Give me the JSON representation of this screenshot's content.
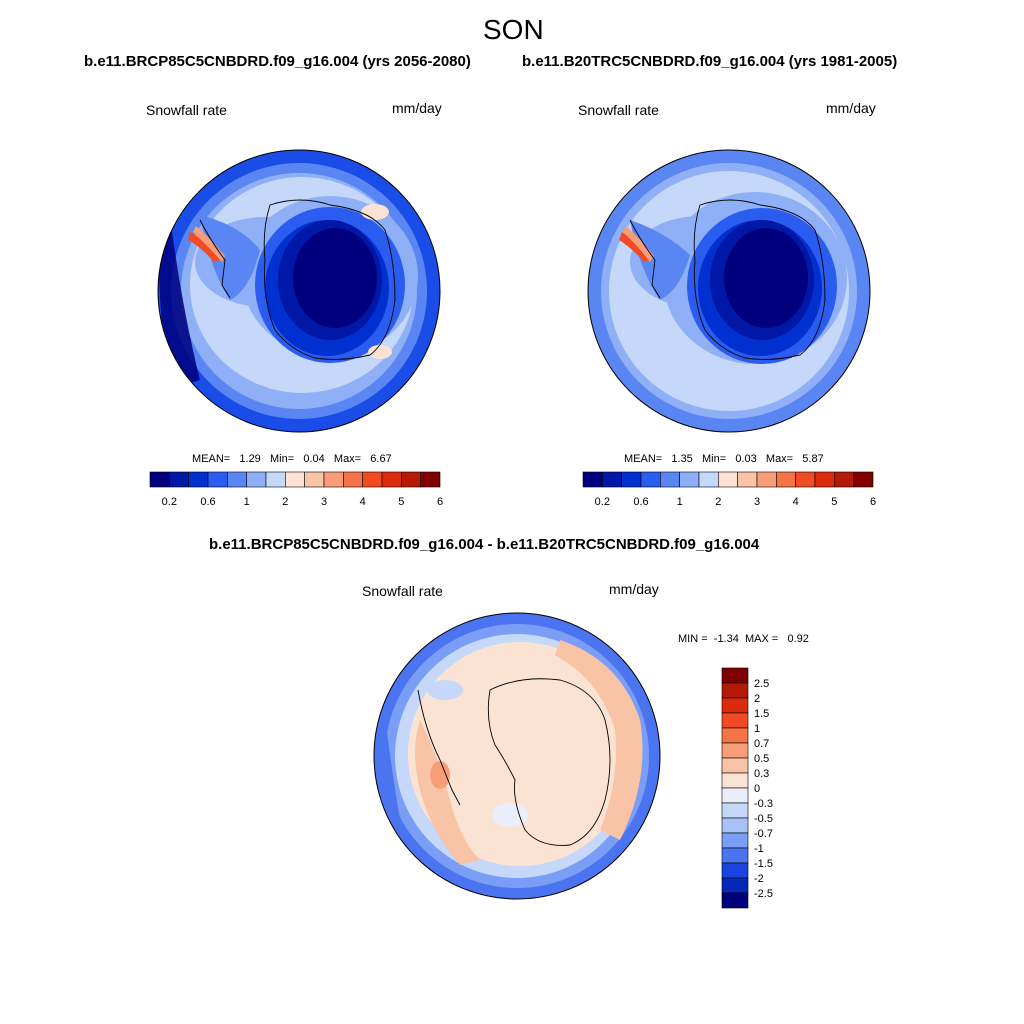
{
  "figure": {
    "season": "SON",
    "left_title": "b.e11.BRCP85C5CNBDRD.f09_g16.004 (yrs 2056-2080)",
    "right_title": "b.e11.B20TRC5CNBDRD.f09_g16.004 (yrs 1981-2005)",
    "diff_title": "b.e11.BRCP85C5CNBDRD.f09_g16.004 - b.e11.B20TRC5CNBDRD.f09_g16.004"
  },
  "panels": {
    "left": {
      "variable": "Snowfall rate",
      "units": "mm/day",
      "stats": {
        "mean_label": "MEAN=",
        "mean": "1.29",
        "min_label": "Min=",
        "min": "0.04",
        "max_label": "Max=",
        "max": "6.67"
      }
    },
    "right": {
      "variable": "Snowfall rate",
      "units": "mm/day",
      "stats": {
        "mean_label": "MEAN=",
        "mean": "1.35",
        "min_label": "Min=",
        "min": "0.03",
        "max_label": "Max=",
        "max": "5.87"
      }
    },
    "diff": {
      "variable": "Snowfall rate",
      "units": "mm/day",
      "stats": {
        "min_label": "MIN =",
        "min": "-1.34",
        "max_label": "MAX =",
        "max": "0.92"
      }
    }
  },
  "colorbar_abs": {
    "colors": [
      "#00007f",
      "#0018a8",
      "#0030d0",
      "#2a5cf0",
      "#5a86f4",
      "#8faff7",
      "#c5d8fa",
      "#fbe3d3",
      "#f9c3a6",
      "#f79e78",
      "#f6734a",
      "#f24a22",
      "#db2b0c",
      "#b41a06",
      "#7f0000"
    ],
    "tick_labels": [
      "0.2",
      "0.6",
      "1",
      "2",
      "3",
      "4",
      "5",
      "6"
    ]
  },
  "colorbar_diff": {
    "colors": [
      "#7f0000",
      "#b41a06",
      "#db2b0c",
      "#f24a22",
      "#f6734a",
      "#f79e78",
      "#f9c3a6",
      "#fbe3d3",
      "#e9eefa",
      "#c5d8fa",
      "#a8c2f8",
      "#7a9ef5",
      "#4a74f0",
      "#1a44e0",
      "#0628b8",
      "#00007f"
    ],
    "tick_labels": [
      "2.5",
      "2",
      "1.5",
      "1",
      "0.7",
      "0.5",
      "0.3",
      "0",
      "-0.3",
      "-0.5",
      "-0.7",
      "-1",
      "-1.5",
      "-2",
      "-2.5"
    ]
  }
}
